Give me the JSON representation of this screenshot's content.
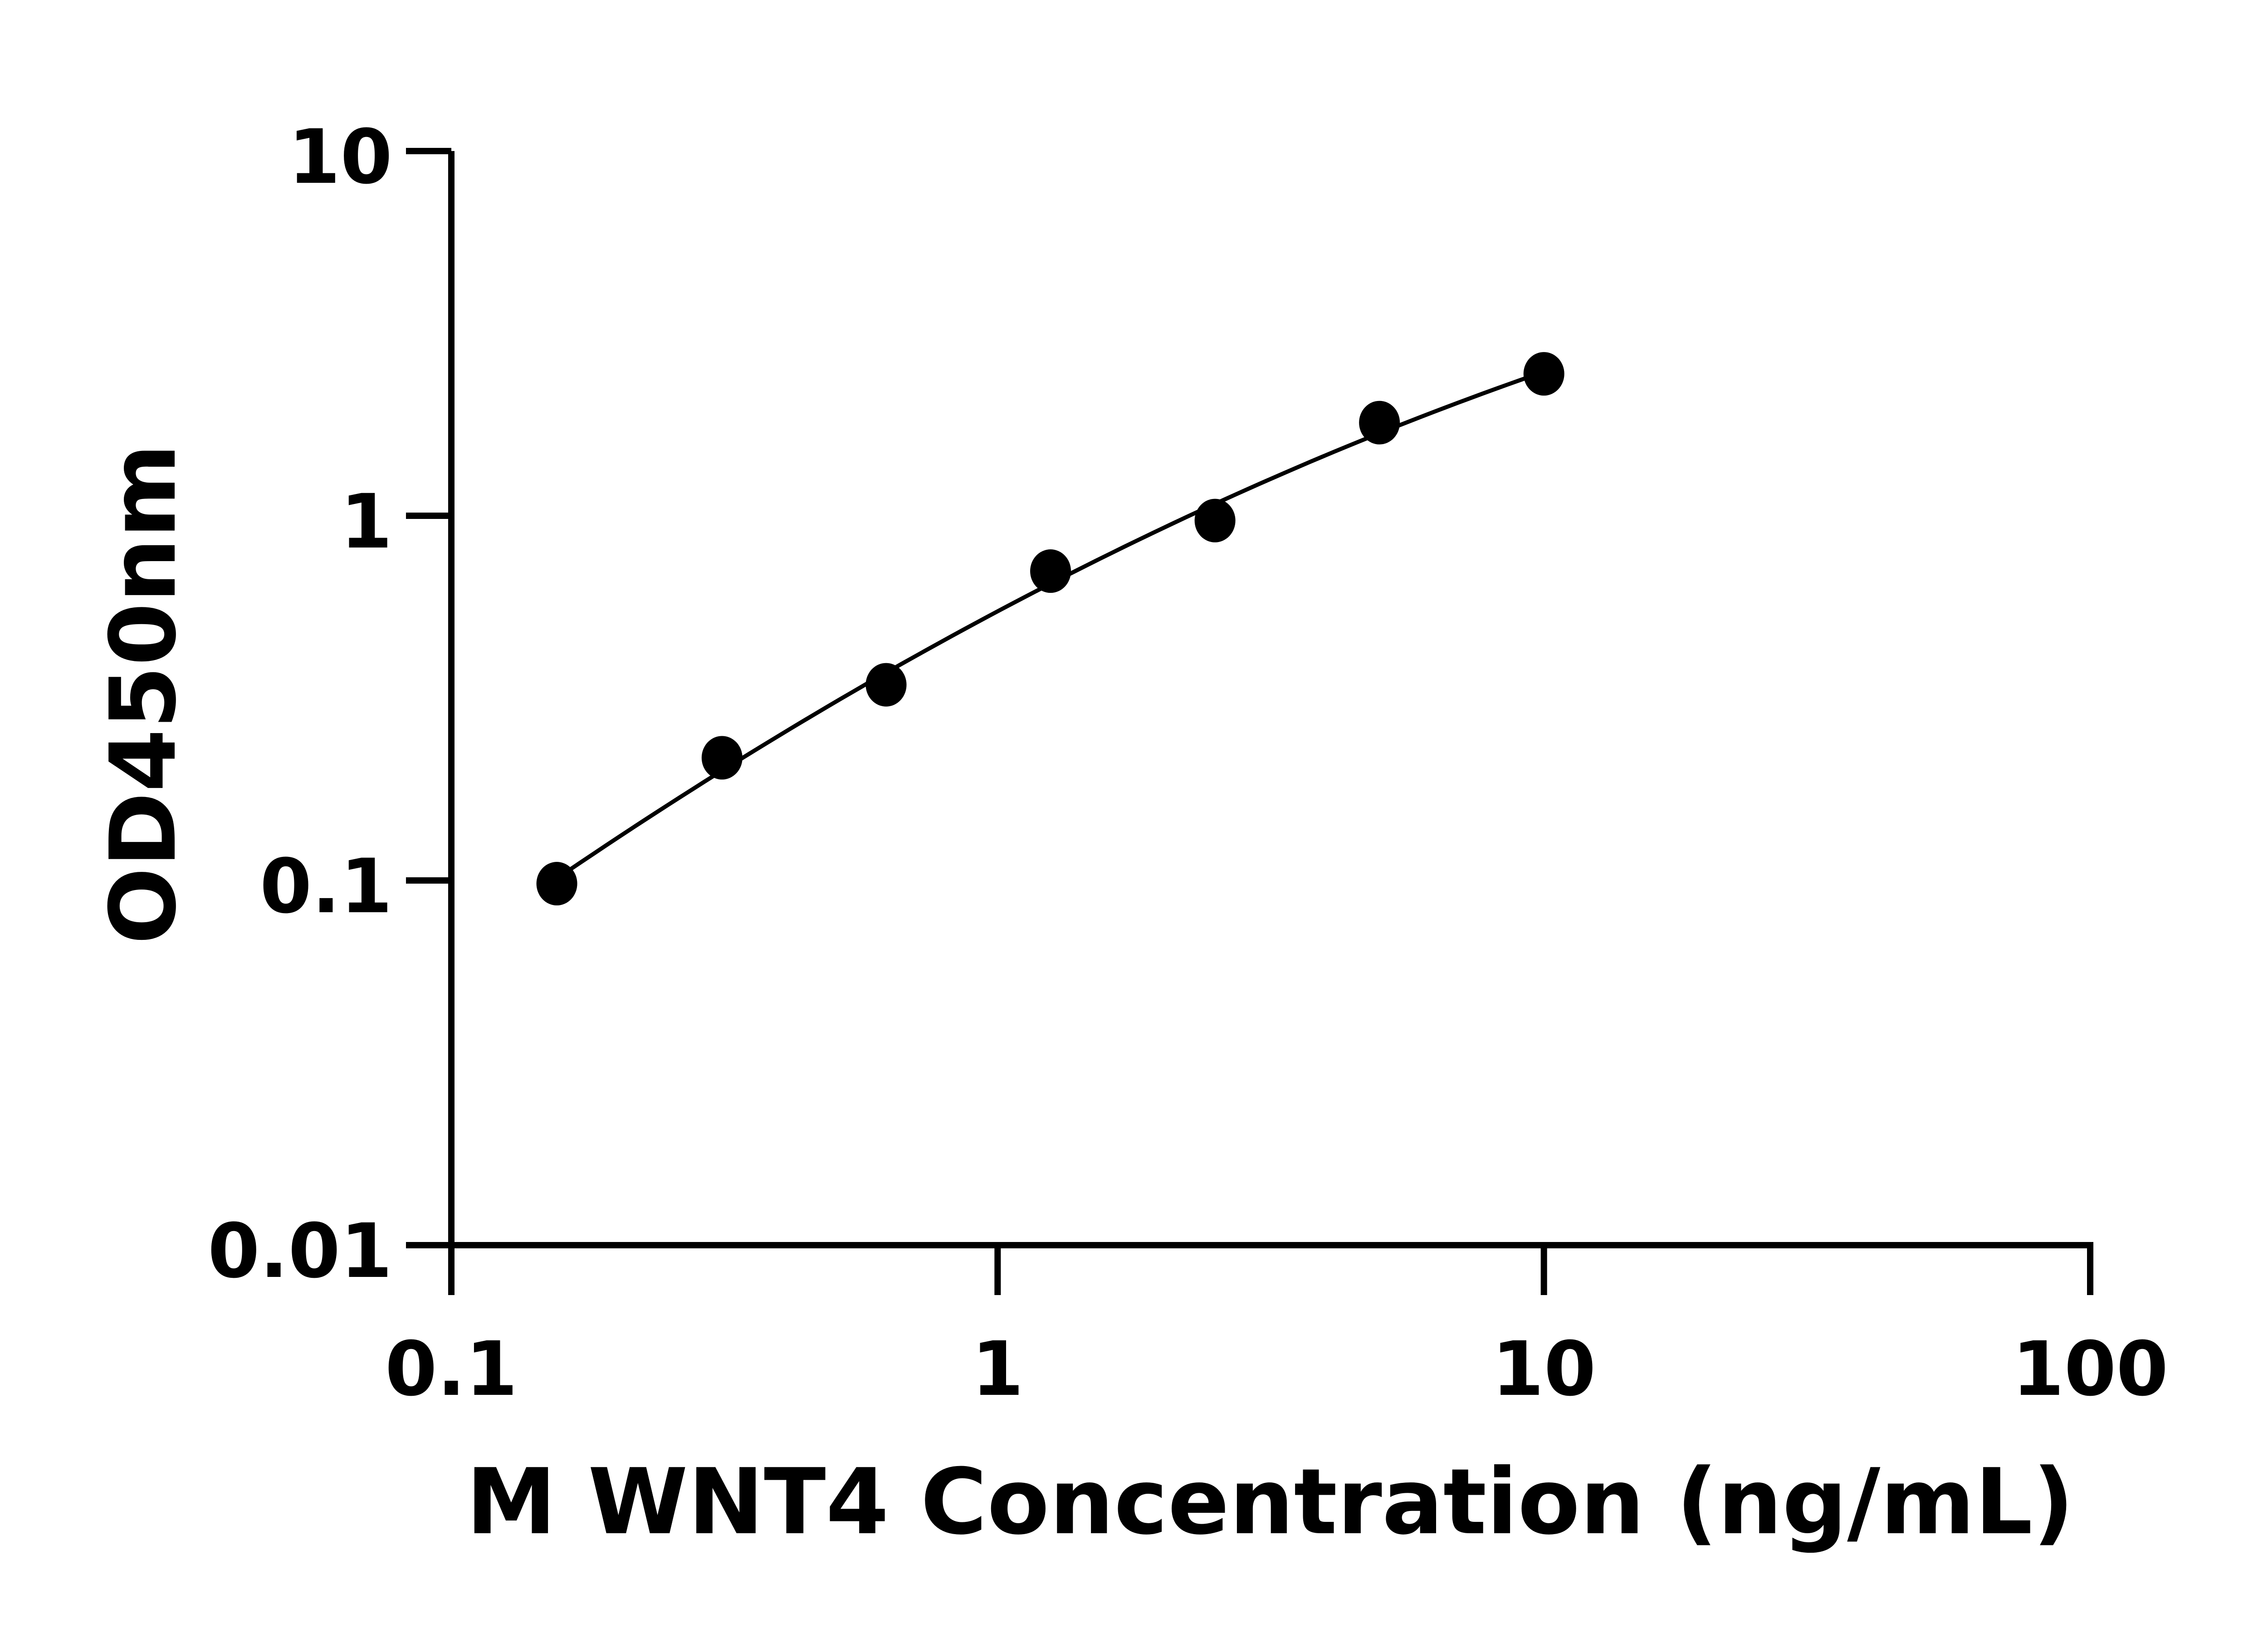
{
  "chart_data": {
    "type": "scatter",
    "title": "",
    "xlabel": "M WNT4 Concentration (ng/mL)",
    "ylabel": "OD450nm",
    "x_scale": "log",
    "y_scale": "log",
    "xlim": [
      0.1,
      100
    ],
    "ylim": [
      0.01,
      10
    ],
    "x_ticks": [
      "0.1",
      "1",
      "10",
      "100"
    ],
    "y_ticks": [
      "0.01",
      "0.1",
      "1",
      "10"
    ],
    "grid": false,
    "fit_curve": true,
    "series": [
      {
        "x": [
          0.156,
          0.313,
          0.625,
          1.25,
          2.5,
          5,
          10
        ],
        "y": [
          0.098,
          0.217,
          0.344,
          0.705,
          0.97,
          1.8,
          2.45
        ]
      }
    ],
    "colors": {
      "marker": "#000000",
      "line": "#000000"
    }
  }
}
